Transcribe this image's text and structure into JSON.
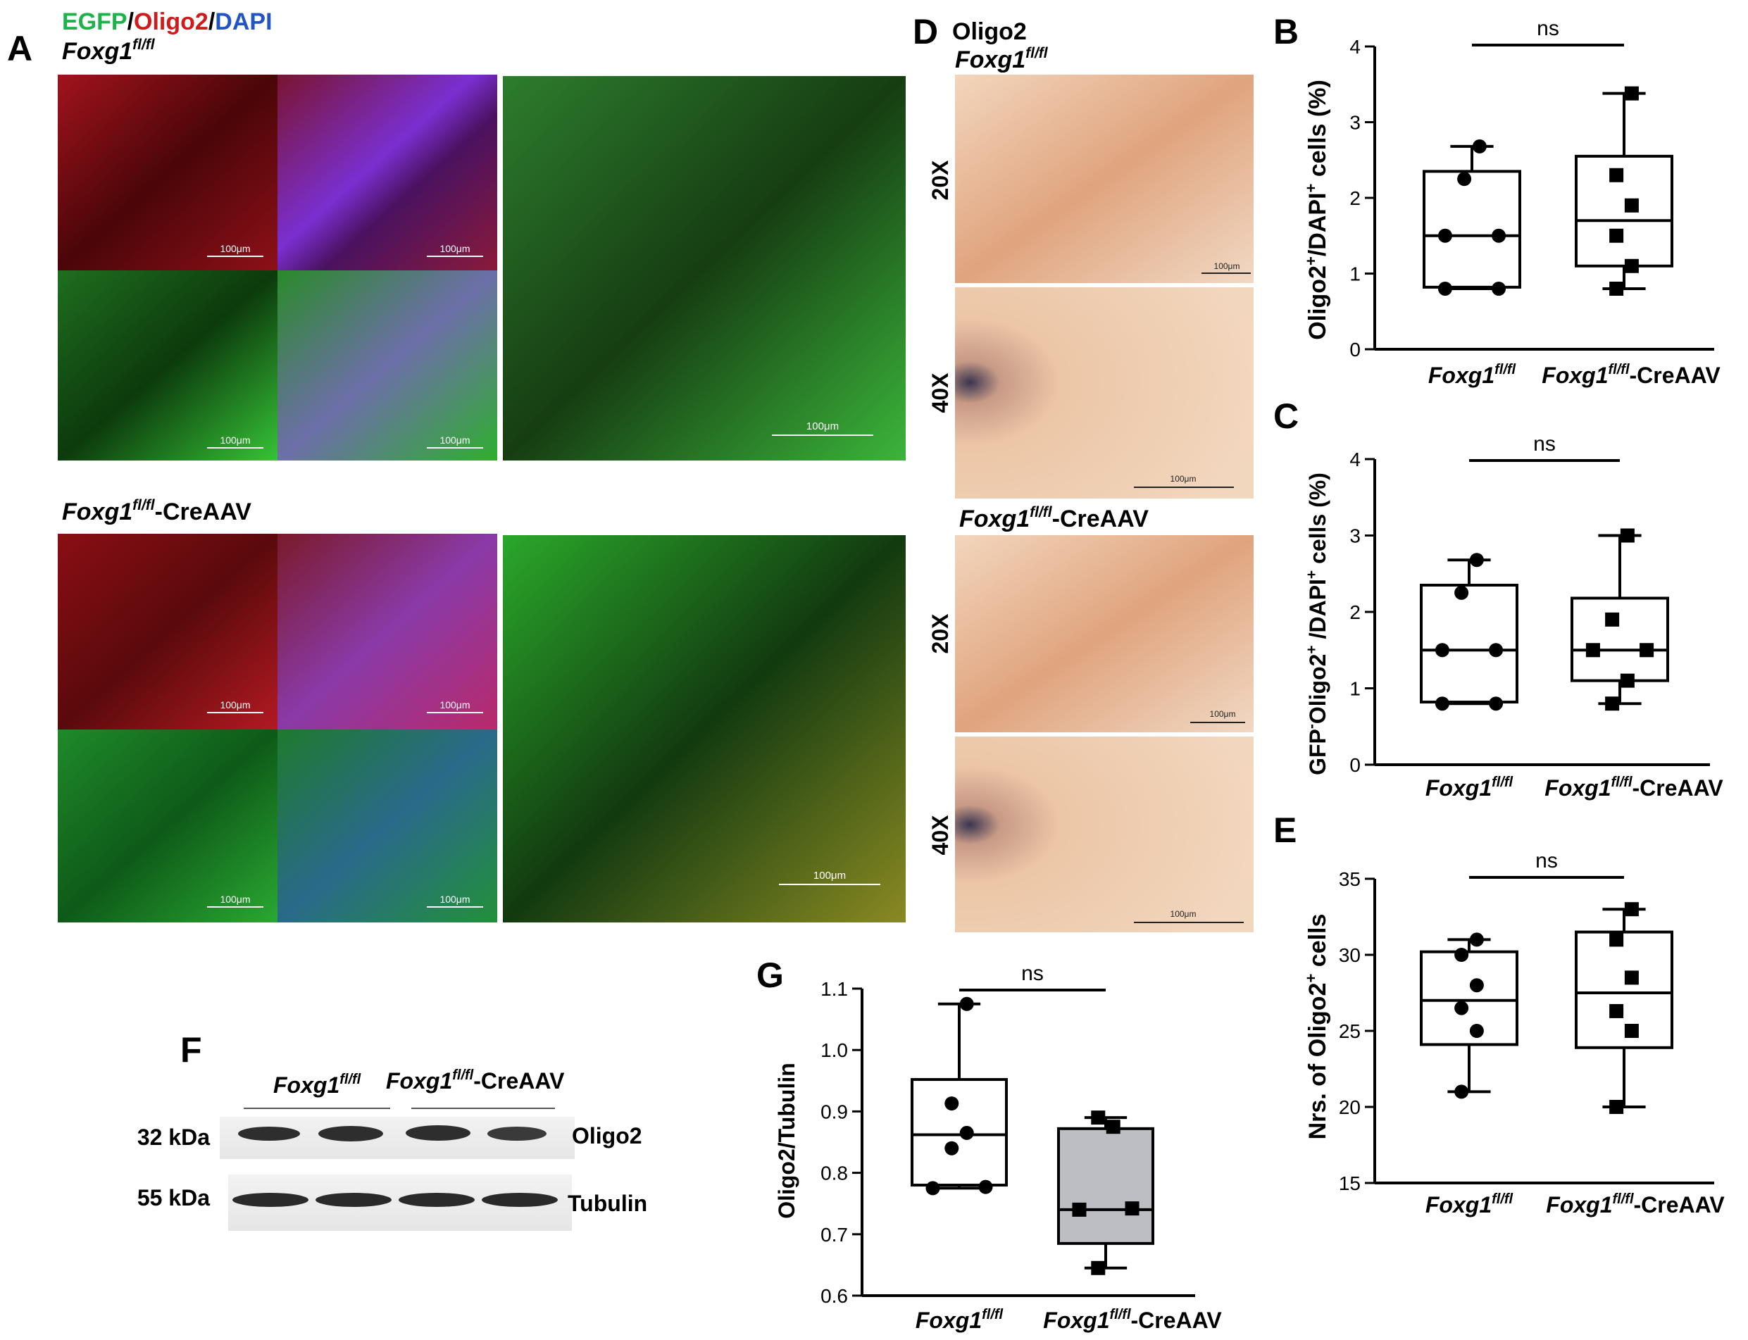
{
  "legend": {
    "egfp": "EGFP",
    "slash1": "/",
    "oligo2": "Oligo2",
    "slash2": "/",
    "dapi": "DAPI",
    "egfp_color": "#1db34a",
    "oligo2_color": "#d11b1b",
    "dapi_color": "#2255c4"
  },
  "panel_a": {
    "letter": "A",
    "group1": {
      "gene": "Foxg1",
      "sup": "fl/fl",
      "suffix": ""
    },
    "group2": {
      "gene": "Foxg1",
      "sup": "fl/fl",
      "suffix": "-CreAAV"
    },
    "scale_bar": "100μm"
  },
  "panel_d": {
    "letter": "D",
    "stain": "Oligo2",
    "group1": {
      "gene": "Foxg1",
      "sup": "fl/fl",
      "suffix": ""
    },
    "group2": {
      "gene": "Foxg1",
      "sup": "fl/fl",
      "suffix": "-CreAAV"
    },
    "mag_20": "20X",
    "mag_40": "40X",
    "scale_bar": "100μm"
  },
  "panel_f": {
    "letter": "F",
    "group1": {
      "gene": "Foxg1",
      "sup": "fl/fl",
      "suffix": ""
    },
    "group2": {
      "gene": "Foxg1",
      "sup": "fl/fl",
      "suffix": "-CreAAV"
    },
    "rows": [
      {
        "kda": "32 kDa",
        "protein": "Oligo2"
      },
      {
        "kda": "55 kDa",
        "protein": "Tubulin"
      }
    ]
  },
  "chart_data": [
    {
      "id": "B",
      "type": "box",
      "ylabel": {
        "p1": "Oligo2",
        "s1": "+",
        "p2": "/DAPI",
        "s2": "+",
        "p3": " cells (%)"
      },
      "ylim": [
        0,
        4
      ],
      "yticks": [
        "0",
        "1",
        "2",
        "3",
        "4"
      ],
      "categories": [
        {
          "gene": "Foxg1",
          "sup": "fl/fl",
          "suffix": ""
        },
        {
          "gene": "Foxg1",
          "sup": "fl/fl",
          "suffix": "-CreAAV"
        }
      ],
      "groups": [
        {
          "marker": "circle",
          "fill": "#ffffff",
          "min": 0.8,
          "q1": 0.82,
          "median": 1.5,
          "q3": 2.35,
          "max": 2.68,
          "points": [
            0.8,
            0.8,
            1.5,
            1.5,
            2.25,
            2.68
          ]
        },
        {
          "marker": "square",
          "fill": "#ffffff",
          "min": 0.8,
          "q1": 1.1,
          "median": 1.7,
          "q3": 2.55,
          "max": 3.38,
          "points": [
            0.8,
            1.1,
            1.5,
            1.9,
            2.3,
            3.38
          ]
        }
      ],
      "significance": "ns"
    },
    {
      "id": "C",
      "type": "box",
      "ylabel": {
        "p1": "GFP",
        "s1": "-",
        "p2": "Oligo2",
        "s2": "+",
        "p3": " /DAPI",
        "s3": "+",
        "p4": " cells (%)"
      },
      "ylim": [
        0,
        4
      ],
      "yticks": [
        "0",
        "1",
        "2",
        "3",
        "4"
      ],
      "categories": [
        {
          "gene": "Foxg1",
          "sup": "fl/fl",
          "suffix": ""
        },
        {
          "gene": "Foxg1",
          "sup": "fl/fl",
          "suffix": "-CreAAV"
        }
      ],
      "groups": [
        {
          "marker": "circle",
          "fill": "#ffffff",
          "min": 0.8,
          "q1": 0.82,
          "median": 1.5,
          "q3": 2.35,
          "max": 2.68,
          "points": [
            0.8,
            0.8,
            1.5,
            1.5,
            2.25,
            2.68
          ]
        },
        {
          "marker": "square",
          "fill": "#ffffff",
          "min": 0.8,
          "q1": 1.1,
          "median": 1.5,
          "q3": 2.18,
          "max": 3.0,
          "points": [
            0.8,
            1.1,
            1.5,
            1.5,
            1.9,
            3.0
          ]
        }
      ],
      "significance": "ns"
    },
    {
      "id": "E",
      "type": "box",
      "ylabel": {
        "p1": "Nrs. of Oligo2",
        "s1": "+",
        "p2": " cells"
      },
      "ylim": [
        15,
        35
      ],
      "yticks": [
        "15",
        "20",
        "25",
        "30",
        "35"
      ],
      "categories": [
        {
          "gene": "Foxg1",
          "sup": "fl/fl",
          "suffix": ""
        },
        {
          "gene": "Foxg1",
          "sup": "fl/fl",
          "suffix": "-CreAAV"
        }
      ],
      "groups": [
        {
          "marker": "circle",
          "fill": "#ffffff",
          "min": 21,
          "q1": 24.1,
          "median": 27,
          "q3": 30.2,
          "max": 31,
          "points": [
            21,
            25,
            26.5,
            28,
            30,
            31
          ]
        },
        {
          "marker": "square",
          "fill": "#ffffff",
          "min": 20,
          "q1": 23.9,
          "median": 27.5,
          "q3": 31.5,
          "max": 33,
          "points": [
            20,
            25,
            26.3,
            28.5,
            31,
            33
          ]
        }
      ],
      "significance": "ns"
    },
    {
      "id": "G",
      "type": "box",
      "ylabel": {
        "p1": "Oligo2/Tubulin"
      },
      "ylim": [
        0.6,
        1.1
      ],
      "yticks": [
        "0.6",
        "0.7",
        "0.8",
        "0.9",
        "1.0",
        "1.1"
      ],
      "categories": [
        {
          "gene": "Foxg1",
          "sup": "fl/fl",
          "suffix": ""
        },
        {
          "gene": "Foxg1",
          "sup": "fl/fl",
          "suffix": "-CreAAV"
        }
      ],
      "groups": [
        {
          "marker": "circle",
          "fill": "#ffffff",
          "min": 0.775,
          "q1": 0.78,
          "median": 0.862,
          "q3": 0.952,
          "max": 1.075,
          "points": [
            0.775,
            0.777,
            0.84,
            0.865,
            0.913,
            1.075
          ]
        },
        {
          "marker": "square",
          "fill": "#bdbdc4",
          "min": 0.645,
          "q1": 0.685,
          "median": 0.74,
          "q3": 0.872,
          "max": 0.89,
          "points": [
            0.645,
            0.74,
            0.742,
            0.875,
            0.89
          ]
        }
      ],
      "significance": "ns"
    }
  ]
}
